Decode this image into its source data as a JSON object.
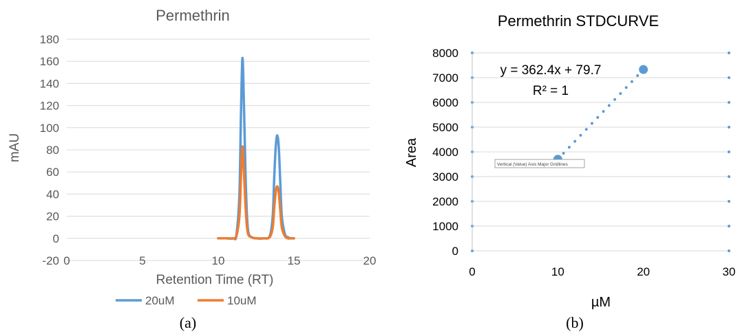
{
  "chart_data": [
    {
      "type": "line",
      "title": "Permethrin",
      "xlabel": "Retention Time (RT)",
      "ylabel": "mAU",
      "xlim": [
        0,
        20
      ],
      "ylim": [
        -20,
        180
      ],
      "xticks": [
        "0",
        "5",
        "10",
        "15",
        "20"
      ],
      "yticks": [
        "-20",
        "0",
        "20",
        "40",
        "60",
        "80",
        "100",
        "120",
        "140",
        "160",
        "180"
      ],
      "grid": true,
      "legend_position": "bottom",
      "series": [
        {
          "name": "20uM",
          "color": "#5B9BD5",
          "x": [
            10.0,
            10.5,
            11.0,
            11.2,
            11.4,
            11.5,
            11.6,
            11.7,
            11.8,
            11.9,
            12.0,
            12.2,
            12.5,
            13.0,
            13.4,
            13.6,
            13.7,
            13.8,
            13.9,
            14.0,
            14.1,
            14.2,
            14.4,
            14.6,
            14.8,
            15.0
          ],
          "y": [
            0,
            0,
            0,
            3,
            40,
            110,
            163,
            120,
            60,
            20,
            5,
            1,
            0,
            0,
            2,
            20,
            55,
            83,
            93,
            82,
            50,
            20,
            4,
            1,
            0,
            0
          ]
        },
        {
          "name": "10uM",
          "color": "#ED7D31",
          "x": [
            10.0,
            10.5,
            11.0,
            11.2,
            11.4,
            11.5,
            11.6,
            11.7,
            11.8,
            11.9,
            12.0,
            12.2,
            12.5,
            13.0,
            13.4,
            13.6,
            13.7,
            13.8,
            13.9,
            14.0,
            14.1,
            14.2,
            14.4,
            14.6,
            14.8,
            15.0
          ],
          "y": [
            0,
            0,
            0,
            2,
            20,
            55,
            83,
            60,
            30,
            10,
            3,
            1,
            0,
            0,
            1,
            10,
            28,
            42,
            47,
            41,
            25,
            10,
            2,
            0,
            0,
            0
          ]
        }
      ],
      "caption": "(a)"
    },
    {
      "type": "scatter",
      "title": "Permethrin STDCURVE",
      "xlabel": "µM",
      "ylabel": "Area",
      "xlim": [
        0,
        30
      ],
      "ylim": [
        0,
        8000
      ],
      "xticks": [
        "0",
        "10",
        "20",
        "30"
      ],
      "yticks": [
        "0",
        "1000",
        "2000",
        "3000",
        "4000",
        "5000",
        "6000",
        "7000",
        "8000"
      ],
      "grid": true,
      "series": [
        {
          "color": "#5B9BD5",
          "x": [
            10,
            20
          ],
          "y": [
            3700,
            7330
          ]
        }
      ],
      "trendline": {
        "x": [
          10,
          20
        ],
        "y": [
          3703.7,
          7327.7
        ],
        "color": "#5B9BD5",
        "style": "dotted"
      },
      "annotations": [
        "y = 362.4x + 79.7",
        "R² = 1"
      ],
      "tooltip": "Vertical (Value) Axis Major Gridlines",
      "caption": "(b)"
    }
  ]
}
